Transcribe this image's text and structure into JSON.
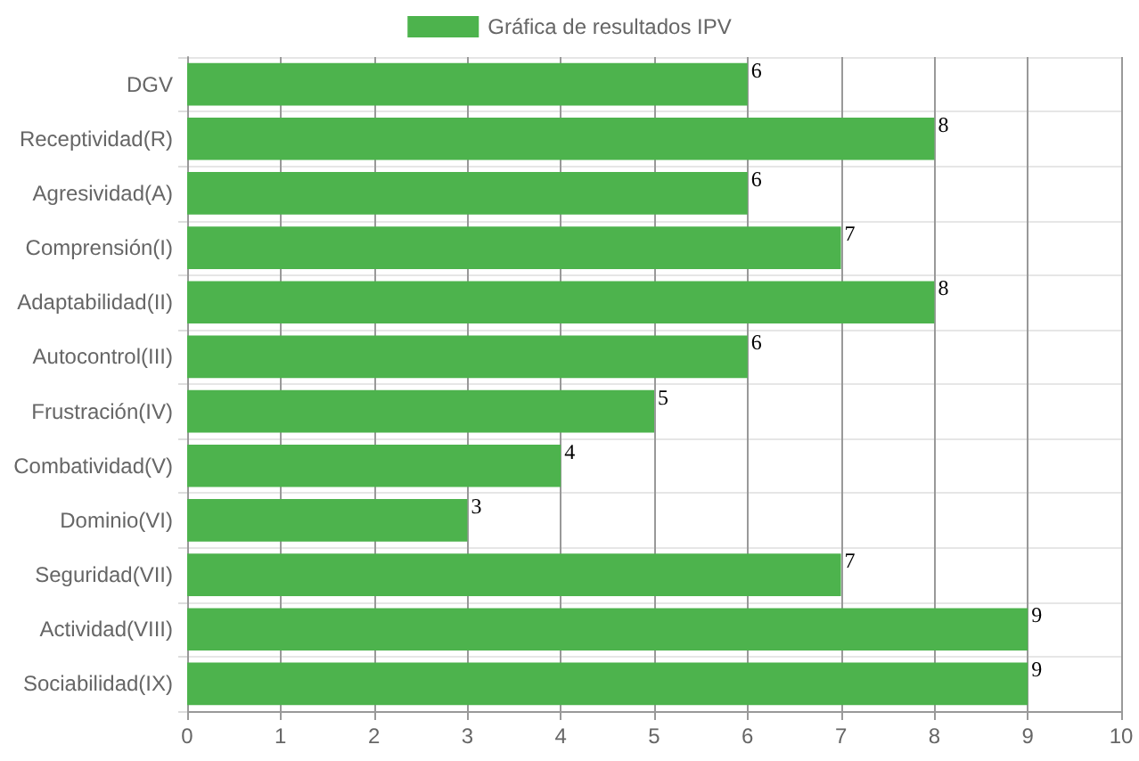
{
  "chart_data": {
    "type": "bar",
    "orientation": "horizontal",
    "categories": [
      "DGV",
      "Receptividad(R)",
      "Agresividad(A)",
      "Comprensión(I)",
      "Adaptabilidad(II)",
      "Autocontrol(III)",
      "Frustración(IV)",
      "Combatividad(V)",
      "Dominio(VI)",
      "Seguridad(VII)",
      "Actividad(VIII)",
      "Sociabilidad(IX)"
    ],
    "series": [
      {
        "name": "Gráfica de resultados IPV",
        "color": "#4db34d",
        "values": [
          6,
          8,
          6,
          7,
          8,
          6,
          5,
          4,
          3,
          7,
          9,
          9
        ]
      }
    ],
    "xlim": [
      0,
      10
    ],
    "xticks": [
      0,
      1,
      2,
      3,
      4,
      5,
      6,
      7,
      8,
      9,
      10
    ],
    "grid": true,
    "legend": "top",
    "data_labels": true
  }
}
